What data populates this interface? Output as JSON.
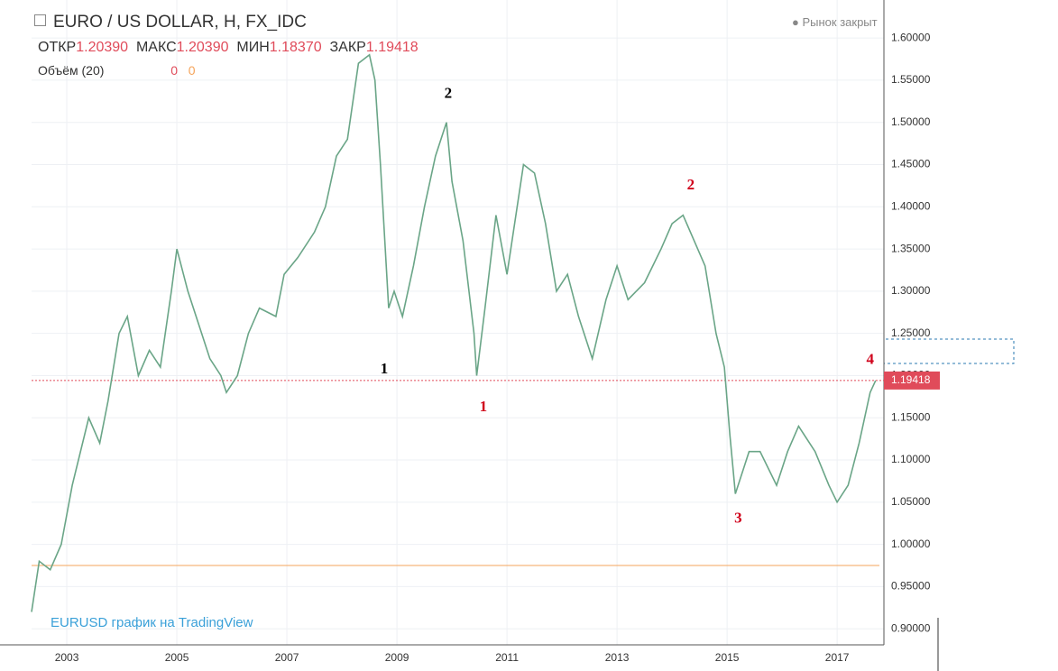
{
  "header": {
    "symbol": "EURO / US DOLLAR, H, FX_IDC",
    "open_label": "ОТКР",
    "open": "1.20390",
    "high_label": "МАКС",
    "high": "1.20390",
    "low_label": "МИН",
    "low": "1.18370",
    "close_label": "ЗАКР",
    "close": "1.19418",
    "volume": "Объём (20)",
    "volume_values": [
      "0",
      "0"
    ],
    "status": "Рынок закрыт",
    "watermark": "EURUSD график на TradingView"
  },
  "chart_data": {
    "type": "line",
    "color": "#6aa587",
    "x": [
      2002.36,
      2002.5,
      2002.7,
      2002.9,
      2003.1,
      2003.4,
      2003.6,
      2003.75,
      2003.95,
      2004.1,
      2004.3,
      2004.5,
      2004.7,
      2004.9,
      2005.0,
      2005.2,
      2005.4,
      2005.6,
      2005.8,
      2005.9,
      2006.1,
      2006.3,
      2006.5,
      2006.8,
      2006.95,
      2007.2,
      2007.5,
      2007.7,
      2007.9,
      2008.1,
      2008.3,
      2008.5,
      2008.6,
      2008.7,
      2008.85,
      2008.95,
      2009.1,
      2009.3,
      2009.5,
      2009.7,
      2009.9,
      2010.0,
      2010.2,
      2010.4,
      2010.45,
      2010.6,
      2010.8,
      2011.0,
      2011.3,
      2011.5,
      2011.7,
      2011.9,
      2012.1,
      2012.3,
      2012.55,
      2012.8,
      2013.0,
      2013.2,
      2013.5,
      2013.8,
      2014.0,
      2014.2,
      2014.4,
      2014.6,
      2014.8,
      2014.95,
      2015.05,
      2015.15,
      2015.4,
      2015.6,
      2015.9,
      2016.1,
      2016.3,
      2016.6,
      2016.85,
      2017.0,
      2017.2,
      2017.4,
      2017.6,
      2017.7
    ],
    "values": [
      0.92,
      0.98,
      0.97,
      1.0,
      1.07,
      1.15,
      1.12,
      1.17,
      1.25,
      1.27,
      1.2,
      1.23,
      1.21,
      1.3,
      1.35,
      1.3,
      1.26,
      1.22,
      1.2,
      1.18,
      1.2,
      1.25,
      1.28,
      1.27,
      1.32,
      1.34,
      1.37,
      1.4,
      1.46,
      1.48,
      1.57,
      1.58,
      1.55,
      1.45,
      1.28,
      1.3,
      1.27,
      1.33,
      1.4,
      1.46,
      1.5,
      1.43,
      1.36,
      1.25,
      1.2,
      1.28,
      1.39,
      1.32,
      1.45,
      1.44,
      1.38,
      1.3,
      1.32,
      1.27,
      1.22,
      1.29,
      1.33,
      1.29,
      1.31,
      1.35,
      1.38,
      1.39,
      1.36,
      1.33,
      1.25,
      1.21,
      1.13,
      1.06,
      1.11,
      1.11,
      1.07,
      1.11,
      1.14,
      1.11,
      1.07,
      1.05,
      1.07,
      1.12,
      1.18,
      1.19418
    ],
    "xlim": [
      2002.36,
      2017.85
    ],
    "ylim": [
      0.881,
      1.645
    ],
    "xticks": [
      2003,
      2005,
      2007,
      2009,
      2011,
      2013,
      2015,
      2017
    ],
    "yticks": [
      {
        "value": 0.9,
        "label": "0.90000"
      },
      {
        "value": 0.95,
        "label": "0.95000"
      },
      {
        "value": 1.0,
        "label": "1.00000"
      },
      {
        "value": 1.05,
        "label": "1.05000"
      },
      {
        "value": 1.1,
        "label": "1.10000"
      },
      {
        "value": 1.15,
        "label": "1.15000"
      },
      {
        "value": 1.2,
        "label": "1.20000"
      },
      {
        "value": 1.25,
        "label": "1.25000"
      },
      {
        "value": 1.3,
        "label": "1.30000"
      },
      {
        "value": 1.35,
        "label": "1.35000"
      },
      {
        "value": 1.4,
        "label": "1.40000"
      },
      {
        "value": 1.45,
        "label": "1.45000"
      },
      {
        "value": 1.5,
        "label": "1.50000"
      },
      {
        "value": 1.55,
        "label": "1.55000"
      },
      {
        "value": 1.6,
        "label": "1.60000"
      }
    ],
    "grid": true,
    "price_line": {
      "value": 1.19418,
      "label": "1.19418",
      "color": "#e04b5a"
    },
    "level_line": {
      "value": 0.975,
      "color": "#f5a45b"
    },
    "annotations": [
      {
        "text": "1",
        "x": 2008.77,
        "y": 1.207,
        "color": "#000000"
      },
      {
        "text": "2",
        "x": 2009.93,
        "y": 1.533,
        "color": "#000000"
      },
      {
        "text": "1",
        "x": 2010.57,
        "y": 1.162,
        "color": "#d0021b"
      },
      {
        "text": "2",
        "x": 2014.34,
        "y": 1.425,
        "color": "#d0021b"
      },
      {
        "text": "3",
        "x": 2015.2,
        "y": 1.03,
        "color": "#d0021b"
      },
      {
        "text": "4",
        "x": 2017.6,
        "y": 1.218,
        "color": "#d0021b"
      }
    ]
  }
}
